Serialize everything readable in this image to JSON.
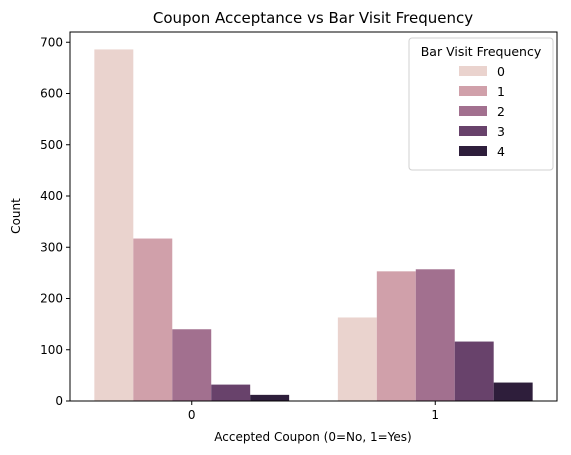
{
  "chart_data": {
    "type": "bar",
    "title": "Coupon Acceptance vs Bar Visit Frequency",
    "xlabel": "Accepted Coupon (0=No, 1=Yes)",
    "ylabel": "Count",
    "categories": [
      "0",
      "1"
    ],
    "ylim": [
      0,
      720
    ],
    "yticks": [
      0,
      100,
      200,
      300,
      400,
      500,
      600,
      700
    ],
    "grid": false,
    "legend": {
      "title": "Bar Visit Frequency",
      "position": "top-right"
    },
    "series": [
      {
        "name": "0",
        "color": "#ead3ce",
        "values": [
          686,
          163
        ]
      },
      {
        "name": "1",
        "color": "#d0a0aa",
        "values": [
          317,
          253
        ]
      },
      {
        "name": "2",
        "color": "#a2708f",
        "values": [
          140,
          257
        ]
      },
      {
        "name": "3",
        "color": "#68426b",
        "values": [
          32,
          116
        ]
      },
      {
        "name": "4",
        "color": "#2e1e3b",
        "values": [
          12,
          36
        ]
      }
    ]
  }
}
